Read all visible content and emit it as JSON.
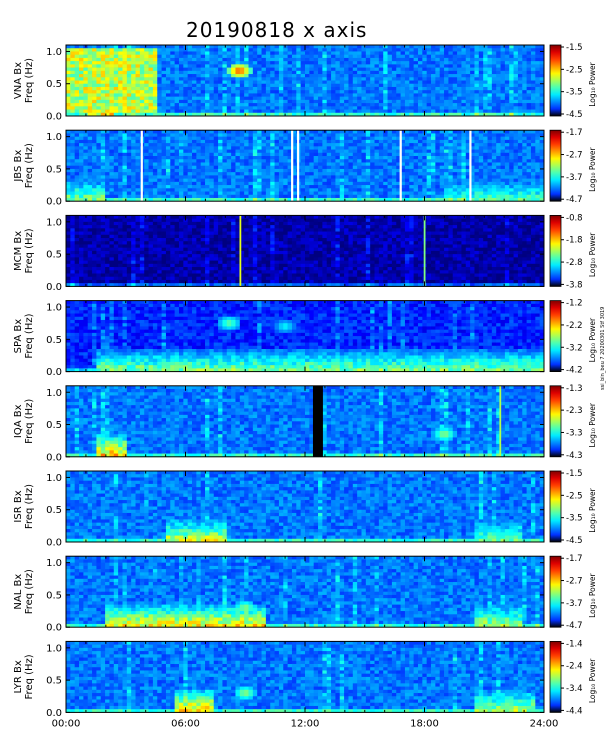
{
  "title": "20190818 x axis",
  "side_note": "ssi_bin_beu 7 20200301 Stf 3019",
  "chart_data": [
    {
      "type": "heatmap",
      "station": "VNA Bx",
      "ylabel": "Freq (Hz)",
      "xlim_hours": [
        0,
        24
      ],
      "ylim": [
        0,
        1.1
      ],
      "ytick_labels": [
        "0.0",
        "0.5",
        "1.0"
      ],
      "yticks": [
        0,
        0.5,
        1.0
      ],
      "colorbar_label": "Log₁₀ Power",
      "color_range": [
        -4.5,
        -1.5
      ],
      "colorbar_ticks": [
        "-1.5",
        "-2.5",
        "-3.5",
        "-4.5"
      ],
      "features": [
        {
          "kind": "broadband",
          "t0": 0.0,
          "t1": 4.5,
          "f0": 0.05,
          "f1": 1.05,
          "level": 0.62
        },
        {
          "kind": "blob",
          "t": 8.7,
          "f": 0.7,
          "level": 0.85
        },
        {
          "kind": "lowband",
          "t0": 1.0,
          "t1": 2.5,
          "level": 0.7
        }
      ]
    },
    {
      "type": "heatmap",
      "station": "JBS Bx",
      "ylabel": "Freq (Hz)",
      "xlim_hours": [
        0,
        24
      ],
      "ylim": [
        0,
        1.1
      ],
      "ytick_labels": [
        "0.0",
        "0.5",
        "1.0"
      ],
      "yticks": [
        0,
        0.5,
        1.0
      ],
      "colorbar_label": "Log₁₀ Power",
      "color_range": [
        -4.7,
        -1.7
      ],
      "colorbar_ticks": [
        "-1.7",
        "-2.7",
        "-3.7",
        "-4.7"
      ],
      "data_gaps_hours": [
        3.8,
        11.35,
        11.65,
        16.8,
        20.3
      ],
      "features": [
        {
          "kind": "lowband",
          "t0": 0.0,
          "t1": 2.0,
          "level": 0.55
        },
        {
          "kind": "lowband",
          "t0": 19.0,
          "t1": 24.0,
          "level": 0.5
        }
      ]
    },
    {
      "type": "heatmap",
      "station": "MCM Bx",
      "ylabel": "Freq (Hz)",
      "xlim_hours": [
        0,
        24
      ],
      "ylim": [
        0,
        1.1
      ],
      "ytick_labels": [
        "0.0",
        "0.5",
        "1.0"
      ],
      "yticks": [
        0,
        0.5,
        1.0
      ],
      "colorbar_label": "Log₁₀ Power",
      "color_range": [
        -3.8,
        -0.8
      ],
      "colorbar_ticks": [
        "-0.8",
        "-1.8",
        "-2.8",
        "-3.8"
      ],
      "background": "dark",
      "features": [
        {
          "kind": "spike",
          "t": 8.75,
          "level": 0.6
        },
        {
          "kind": "spike",
          "t": 18.0,
          "level": 0.5
        }
      ]
    },
    {
      "type": "heatmap",
      "station": "SPA Bx",
      "ylabel": "Freq (Hz)",
      "xlim_hours": [
        0,
        24
      ],
      "ylim": [
        0,
        1.1
      ],
      "ytick_labels": [
        "0.0",
        "0.5",
        "1.0"
      ],
      "yticks": [
        0,
        0.5,
        1.0
      ],
      "colorbar_label": "Log₁₀ Power",
      "color_range": [
        -4.2,
        -1.2
      ],
      "colorbar_ticks": [
        "-1.2",
        "-2.2",
        "-3.2",
        "-4.2"
      ],
      "background": "dim",
      "features": [
        {
          "kind": "lowband",
          "t0": 1.5,
          "t1": 24.0,
          "level": 0.55
        },
        {
          "kind": "blob",
          "t": 8.2,
          "f": 0.75,
          "level": 0.5
        },
        {
          "kind": "blob",
          "t": 11.0,
          "f": 0.7,
          "level": 0.4
        }
      ]
    },
    {
      "type": "heatmap",
      "station": "IQA Bx",
      "ylabel": "Freq (Hz)",
      "xlim_hours": [
        0,
        24
      ],
      "ylim": [
        0,
        1.1
      ],
      "ytick_labels": [
        "0.0",
        "0.5",
        "1.0"
      ],
      "yticks": [
        0,
        0.5,
        1.0
      ],
      "colorbar_label": "Log₁₀ Power",
      "color_range": [
        -4.3,
        -1.3
      ],
      "colorbar_ticks": [
        "-1.3",
        "-2.3",
        "-3.3",
        "-4.3"
      ],
      "missing_hours": [
        12.4,
        12.9
      ],
      "features": [
        {
          "kind": "lowband",
          "t0": 1.5,
          "t1": 3.0,
          "level": 0.75
        },
        {
          "kind": "blob",
          "t": 19.0,
          "f": 0.35,
          "level": 0.55
        },
        {
          "kind": "spike",
          "t": 21.8,
          "level": 0.55
        }
      ]
    },
    {
      "type": "heatmap",
      "station": "ISR Bx",
      "ylabel": "Freq (Hz)",
      "xlim_hours": [
        0,
        24
      ],
      "ylim": [
        0,
        1.1
      ],
      "ytick_labels": [
        "0.0",
        "0.5",
        "1.0"
      ],
      "yticks": [
        0,
        0.5,
        1.0
      ],
      "colorbar_label": "Log₁₀ Power",
      "color_range": [
        -4.5,
        -1.5
      ],
      "colorbar_ticks": [
        "-1.5",
        "-2.5",
        "-3.5",
        "-4.5"
      ],
      "features": [
        {
          "kind": "lowband",
          "t0": 5.0,
          "t1": 8.0,
          "level": 0.65
        },
        {
          "kind": "lowband",
          "t0": 20.5,
          "t1": 23.0,
          "level": 0.55
        }
      ]
    },
    {
      "type": "heatmap",
      "station": "NAL Bx",
      "ylabel": "Freq (Hz)",
      "xlim_hours": [
        0,
        24
      ],
      "ylim": [
        0,
        1.1
      ],
      "ytick_labels": [
        "0.0",
        "0.5",
        "1.0"
      ],
      "yticks": [
        0,
        0.5,
        1.0
      ],
      "colorbar_label": "Log₁₀ Power",
      "color_range": [
        -4.7,
        -1.7
      ],
      "colorbar_ticks": [
        "-1.7",
        "-2.7",
        "-3.7",
        "-4.7"
      ],
      "features": [
        {
          "kind": "lowband",
          "t0": 2.0,
          "t1": 10.0,
          "level": 0.7
        },
        {
          "kind": "blob",
          "t": 9.0,
          "f": 0.3,
          "level": 0.55
        },
        {
          "kind": "lowband",
          "t0": 20.5,
          "t1": 23.0,
          "level": 0.6
        }
      ]
    },
    {
      "type": "heatmap",
      "station": "LYR Bx",
      "ylabel": "Freq (Hz)",
      "xlim_hours": [
        0,
        24
      ],
      "ylim": [
        0,
        1.1
      ],
      "ytick_labels": [
        "0.0",
        "0.5",
        "1.0"
      ],
      "yticks": [
        0,
        0.5,
        1.0
      ],
      "colorbar_label": "Log₁₀ Power",
      "color_range": [
        -4.4,
        -1.4
      ],
      "colorbar_ticks": [
        "-1.4",
        "-2.4",
        "-3.4",
        "-4.4"
      ],
      "features": [
        {
          "kind": "lowband",
          "t0": 5.5,
          "t1": 7.5,
          "level": 0.75
        },
        {
          "kind": "blob",
          "t": 9.0,
          "f": 0.3,
          "level": 0.55
        },
        {
          "kind": "lowband",
          "t0": 20.5,
          "t1": 23.5,
          "level": 0.6
        }
      ]
    }
  ],
  "xaxis": {
    "tick_labels": [
      "00:00",
      "06:00",
      "12:00",
      "18:00",
      "24:00"
    ],
    "tick_hours": [
      0,
      6,
      12,
      18,
      24
    ]
  }
}
